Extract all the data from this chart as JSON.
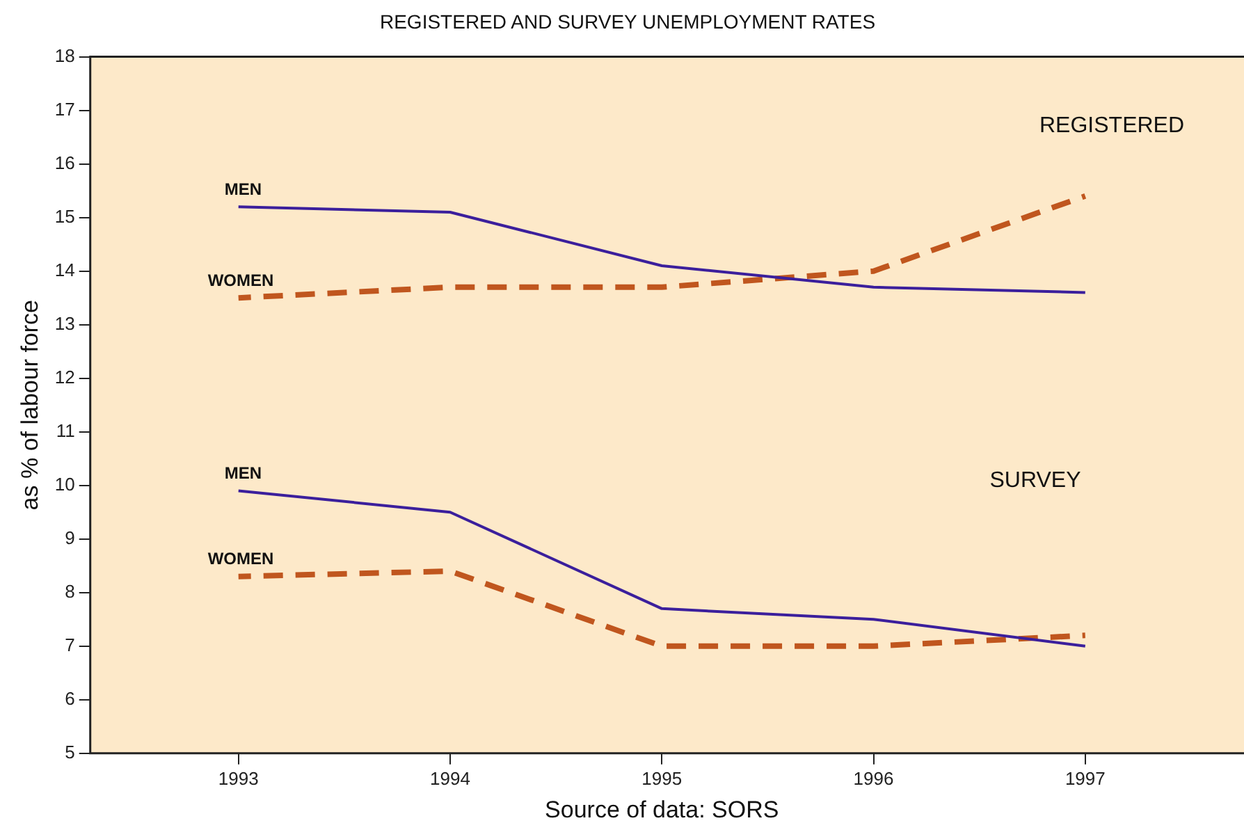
{
  "chart_data": {
    "type": "line",
    "title": "REGISTERED AND SURVEY UNEMPLOYMENT RATES",
    "ylabel": "as % of labour force",
    "x": [
      1993,
      1994,
      1995,
      1996,
      1997
    ],
    "series": [
      {
        "name": "MEN",
        "color": "#3b1f9c",
        "values": [
          15.2,
          15.1,
          14.1,
          13.7,
          13.6
        ]
      },
      {
        "name": "WOMEN",
        "color": "#c0561e",
        "line_style": "dashed",
        "values": [
          13.5,
          13.7,
          13.7,
          14.0,
          15.4
        ]
      },
      {
        "name": "MEN",
        "color": "#3b1f9c",
        "values": [
          9.9,
          9.5,
          7.7,
          7.5,
          7.0
        ]
      },
      {
        "name": "WOMEN",
        "color": "#c0561e",
        "line_style": "dashed",
        "values": [
          8.3,
          8.4,
          7.0,
          7.0,
          7.2
        ]
      }
    ],
    "annotations": [
      "REGISTERED",
      "SURVEY",
      "Source of data: SORS"
    ],
    "xlim": [
      1992.3,
      1997.75
    ],
    "xticks": [
      1993,
      1994,
      1995,
      1996,
      1997
    ],
    "ylim": [
      5,
      18
    ],
    "yticks": [
      5,
      6,
      7,
      8,
      9,
      10,
      11,
      12,
      13,
      14,
      15,
      16,
      17,
      18
    ],
    "legend": false,
    "marker": "none"
  }
}
